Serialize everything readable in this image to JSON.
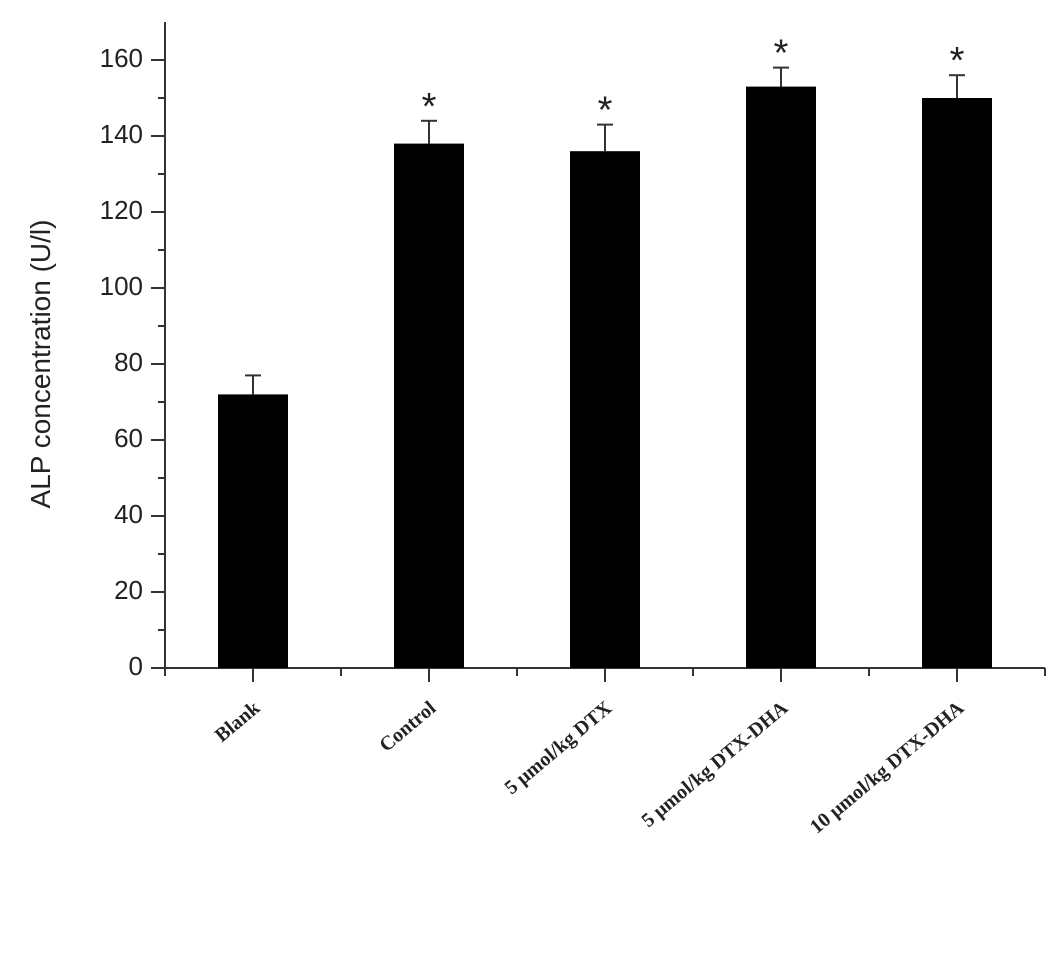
{
  "chart_data": {
    "type": "bar",
    "y_label": "ALP concentration (U/l)",
    "categories": [
      "Blank",
      "Control",
      "5 μmol/kg DTX",
      "5 μmol/kg DTX-DHA",
      "10 μmol/kg DTX-DHA"
    ],
    "values": [
      72,
      138,
      136,
      153,
      150
    ],
    "errors": [
      5,
      6,
      7,
      5,
      6
    ],
    "annotations": [
      null,
      "*",
      "*",
      "*",
      "*"
    ],
    "color": "#000000",
    "ylim": [
      0,
      170
    ],
    "yticks": [
      0,
      20,
      40,
      60,
      80,
      100,
      120,
      140,
      160
    ]
  }
}
